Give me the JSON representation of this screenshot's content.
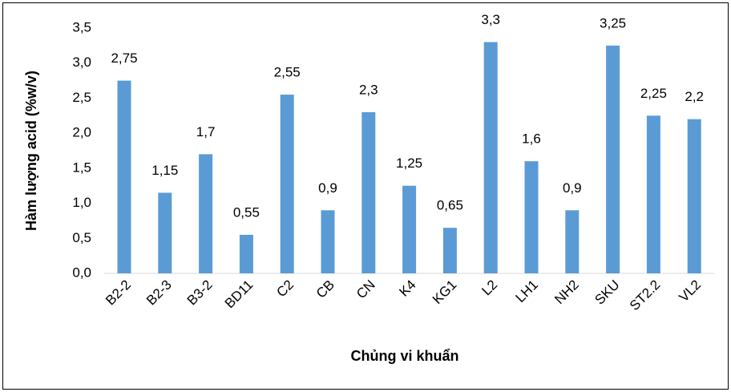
{
  "chart_data": {
    "type": "bar",
    "x_label": "Chủng vi khuẩn",
    "y_label": "Hàm lượng acid (%w/v)",
    "categories": [
      "B2-2",
      "B2-3",
      "B3-2",
      "BD11",
      "C2",
      "CB",
      "CN",
      "K4",
      "KG1",
      "L2",
      "LH1",
      "NH2",
      "SKU",
      "ST2.2",
      "VL2"
    ],
    "values": [
      2.75,
      1.15,
      1.7,
      0.55,
      2.55,
      0.9,
      2.3,
      1.25,
      0.65,
      3.3,
      1.6,
      0.9,
      3.25,
      2.25,
      2.2
    ],
    "value_labels": [
      "2,75",
      "1,15",
      "1,7",
      "0,55",
      "2,55",
      "0,9",
      "2,3",
      "1,25",
      "0,65",
      "3,3",
      "1,6",
      "0,9",
      "3,25",
      "2,25",
      "2,2"
    ],
    "color": "#5b9bd5",
    "ylim": [
      0,
      3.5
    ],
    "yticks": [
      {
        "value": 0,
        "label": "0,0"
      },
      {
        "value": 0.5,
        "label": "0,5"
      },
      {
        "value": 1,
        "label": "1,0"
      },
      {
        "value": 1.5,
        "label": "1,5"
      },
      {
        "value": 2,
        "label": "2,0"
      },
      {
        "value": 2.5,
        "label": "2,5"
      },
      {
        "value": 3,
        "label": "3,0"
      },
      {
        "value": 3.5,
        "label": "3,5"
      }
    ],
    "grid": false
  }
}
